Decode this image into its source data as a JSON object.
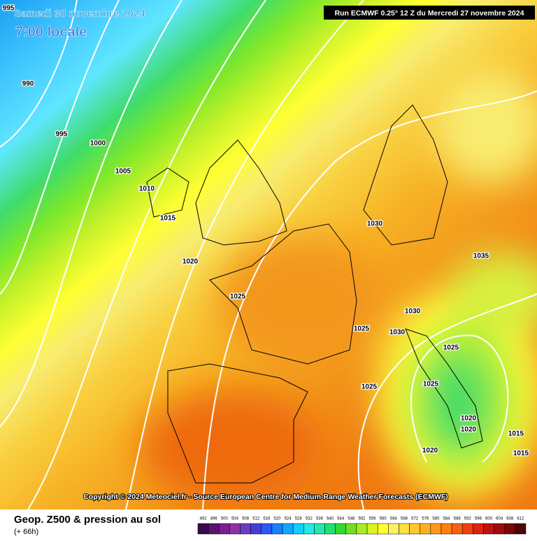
{
  "header": {
    "date": "Samedi 30 novembre 2024",
    "time": "7:00 locale",
    "run": "Run ECMWF 0.25° 12 Z du Mercredi 27 novembre 2024"
  },
  "copyright": "Copyright © 2024 Meteociel.fr - Source European Centre for Medium-Range Weather Forecasts (ECMWF)",
  "footer": {
    "title": "Geop. Z500 & pression au sol",
    "lead": "(+ 66h)"
  },
  "isobar_labels": [
    995,
    990,
    995,
    1000,
    1005,
    1010,
    1015,
    1020,
    1025,
    1030,
    1035,
    1030,
    1025,
    1030,
    1025,
    1025,
    1025,
    1020,
    1020,
    1015,
    1015,
    1020
  ],
  "colorbar": {
    "labels": [
      492,
      496,
      500,
      504,
      508,
      512,
      516,
      520,
      524,
      528,
      532,
      536,
      540,
      544,
      548,
      552,
      556,
      560,
      564,
      568,
      572,
      576,
      580,
      584,
      588,
      592,
      596,
      600,
      604,
      608,
      612
    ]
  }
}
